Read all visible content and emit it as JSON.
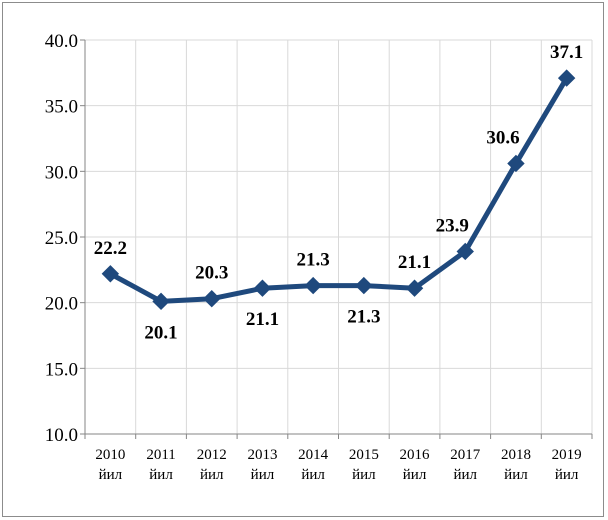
{
  "chart_data": {
    "type": "line",
    "categories": [
      [
        "2010",
        "йил"
      ],
      [
        "2011",
        "йил"
      ],
      [
        "2012",
        "йил"
      ],
      [
        "2013",
        "йил"
      ],
      [
        "2014",
        "йил"
      ],
      [
        "2015",
        "йил"
      ],
      [
        "2016",
        "йил"
      ],
      [
        "2017",
        "йил"
      ],
      [
        "2018",
        "йил"
      ],
      [
        "2019",
        "йил"
      ]
    ],
    "values": [
      22.2,
      20.1,
      20.3,
      21.1,
      21.3,
      21.3,
      21.1,
      23.9,
      30.6,
      37.1
    ],
    "data_labels": [
      "22.2",
      "20.1",
      "20.3",
      "21.1",
      "21.3",
      "21.3",
      "21.1",
      "23.9",
      "30.6",
      "37.1"
    ],
    "ylim": [
      10.0,
      40.0
    ],
    "yticks": [
      "10.0",
      "15.0",
      "20.0",
      "25.0",
      "30.0",
      "35.0",
      "40.0"
    ],
    "grid": true,
    "legend": "none",
    "line_color": "#1f497d",
    "grid_color": "#d9d9d9",
    "axis_color": "#868686"
  }
}
